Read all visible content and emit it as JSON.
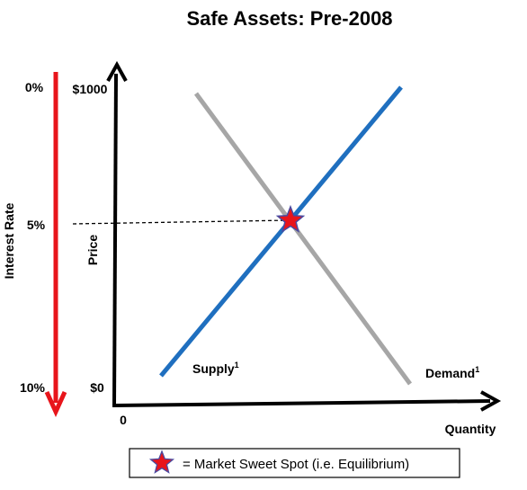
{
  "title": "Safe Assets: Pre-2008",
  "y_axis": {
    "label": "Price",
    "top_tick": "$1000",
    "bottom_tick": "$0"
  },
  "x_axis": {
    "label": "Quantity",
    "origin": "0"
  },
  "interest_rate_axis": {
    "label": "Interest Rate",
    "ticks": [
      "0%",
      "5%",
      "10%"
    ],
    "arrow_color": "#e8151b"
  },
  "curves": {
    "supply": {
      "label": "Supply",
      "superscript": "1",
      "color": "#1f6fbf"
    },
    "demand": {
      "label": "Demand",
      "superscript": "1",
      "color": "#a6a6a6"
    }
  },
  "equilibrium": {
    "marker_color": "#e8151b",
    "guide": "dashed line at 5%"
  },
  "legend": {
    "icon": "red-star-icon",
    "text": "= Market Sweet Spot (i.e. Equilibrium)"
  }
}
